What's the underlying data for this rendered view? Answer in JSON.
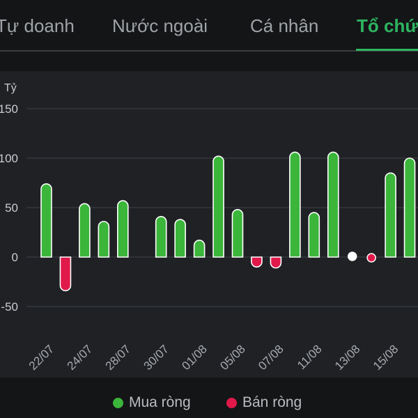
{
  "tabs": [
    {
      "label": "Tự doanh",
      "active": false
    },
    {
      "label": "Nước ngoài",
      "active": false
    },
    {
      "label": "Cá nhân",
      "active": false
    },
    {
      "label": "Tổ chức",
      "active": true
    }
  ],
  "colors": {
    "accent": "#2db560",
    "buy": "#3bb53a",
    "sell": "#e0194a",
    "background": "#141517",
    "panel": "#1f2125"
  },
  "legend": {
    "buy_label": "Mua ròng",
    "sell_label": "Bán ròng"
  },
  "chart_data": {
    "type": "bar",
    "unit": "Tỷ",
    "ylim": [
      -50,
      150
    ],
    "yticks": [
      150,
      100,
      50,
      0,
      -50
    ],
    "grid": true,
    "x_labels": [
      "22/07",
      "24/07",
      "28/07",
      "30/07",
      "01/08",
      "05/08",
      "07/08",
      "11/08",
      "13/08",
      "15/08"
    ],
    "values": [
      74,
      -34,
      54,
      36,
      57,
      null,
      41,
      38,
      17,
      102,
      48,
      -10,
      -11,
      106,
      45,
      106,
      0,
      -1,
      85,
      100
    ],
    "legend_position": "bottom"
  }
}
